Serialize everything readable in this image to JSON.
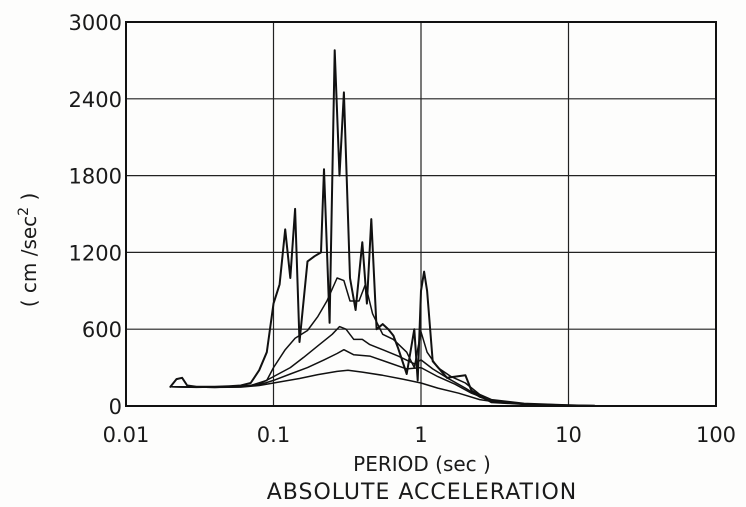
{
  "chart_data": {
    "type": "line",
    "title": "ABSOLUTE ACCELERATION",
    "xlabel": "PERIOD (sec )",
    "ylabel": "( cm /sec",
    "ylabel_sup": "2",
    "ylabel_end": " )",
    "x_scale": "log",
    "xlim": [
      0.01,
      100
    ],
    "ylim": [
      0,
      3000
    ],
    "grid": true,
    "legend": "none",
    "x_ticks": [
      {
        "value": 0.01,
        "label": "0.01"
      },
      {
        "value": 0.1,
        "label": "0.1"
      },
      {
        "value": 1,
        "label": "1"
      },
      {
        "value": 10,
        "label": "10"
      },
      {
        "value": 100,
        "label": "100"
      }
    ],
    "y_ticks": [
      {
        "value": 0,
        "label": "0"
      },
      {
        "value": 600,
        "label": "600"
      },
      {
        "value": 1200,
        "label": "1200"
      },
      {
        "value": 1800,
        "label": "1800"
      },
      {
        "value": 2400,
        "label": "2400"
      },
      {
        "value": 3000,
        "label": "3000"
      }
    ],
    "line_color": "#111111",
    "series": [
      {
        "points": [
          [
            0.02,
            150
          ],
          [
            0.022,
            210
          ],
          [
            0.024,
            220
          ],
          [
            0.026,
            160
          ],
          [
            0.03,
            150
          ],
          [
            0.04,
            150
          ],
          [
            0.05,
            155
          ],
          [
            0.06,
            160
          ],
          [
            0.07,
            180
          ],
          [
            0.08,
            280
          ],
          [
            0.09,
            420
          ],
          [
            0.1,
            800
          ],
          [
            0.11,
            950
          ],
          [
            0.12,
            1380
          ],
          [
            0.13,
            1000
          ],
          [
            0.14,
            1540
          ],
          [
            0.15,
            500
          ],
          [
            0.17,
            1130
          ],
          [
            0.19,
            1170
          ],
          [
            0.21,
            1200
          ],
          [
            0.22,
            1850
          ],
          [
            0.24,
            650
          ],
          [
            0.26,
            2780
          ],
          [
            0.28,
            1800
          ],
          [
            0.3,
            2450
          ],
          [
            0.33,
            1000
          ],
          [
            0.36,
            750
          ],
          [
            0.4,
            1280
          ],
          [
            0.43,
            800
          ],
          [
            0.46,
            1460
          ],
          [
            0.5,
            600
          ],
          [
            0.55,
            640
          ],
          [
            0.6,
            600
          ],
          [
            0.65,
            550
          ],
          [
            0.7,
            450
          ],
          [
            0.8,
            250
          ],
          [
            0.9,
            600
          ],
          [
            0.95,
            200
          ],
          [
            1.0,
            900
          ],
          [
            1.05,
            1050
          ],
          [
            1.1,
            900
          ],
          [
            1.2,
            350
          ],
          [
            1.5,
            220
          ],
          [
            2.0,
            240
          ],
          [
            2.2,
            120
          ],
          [
            3.0,
            30
          ],
          [
            5.0,
            15
          ],
          [
            10,
            5
          ],
          [
            15,
            2
          ]
        ]
      },
      {
        "points": [
          [
            0.02,
            150
          ],
          [
            0.03,
            145
          ],
          [
            0.05,
            150
          ],
          [
            0.07,
            160
          ],
          [
            0.09,
            200
          ],
          [
            0.1,
            300
          ],
          [
            0.12,
            440
          ],
          [
            0.14,
            530
          ],
          [
            0.17,
            590
          ],
          [
            0.2,
            700
          ],
          [
            0.23,
            820
          ],
          [
            0.27,
            1000
          ],
          [
            0.3,
            980
          ],
          [
            0.33,
            820
          ],
          [
            0.38,
            820
          ],
          [
            0.42,
            950
          ],
          [
            0.47,
            720
          ],
          [
            0.55,
            560
          ],
          [
            0.65,
            520
          ],
          [
            0.8,
            420
          ],
          [
            0.9,
            300
          ],
          [
            1.0,
            580
          ],
          [
            1.1,
            420
          ],
          [
            1.3,
            300
          ],
          [
            1.6,
            230
          ],
          [
            2.0,
            180
          ],
          [
            2.5,
            90
          ],
          [
            3.0,
            50
          ],
          [
            5.0,
            20
          ],
          [
            10,
            8
          ],
          [
            15,
            3
          ]
        ]
      },
      {
        "points": [
          [
            0.02,
            150
          ],
          [
            0.04,
            145
          ],
          [
            0.06,
            150
          ],
          [
            0.08,
            170
          ],
          [
            0.1,
            230
          ],
          [
            0.13,
            300
          ],
          [
            0.16,
            380
          ],
          [
            0.2,
            470
          ],
          [
            0.25,
            560
          ],
          [
            0.28,
            620
          ],
          [
            0.31,
            600
          ],
          [
            0.35,
            520
          ],
          [
            0.4,
            520
          ],
          [
            0.45,
            480
          ],
          [
            0.55,
            440
          ],
          [
            0.7,
            390
          ],
          [
            0.9,
            330
          ],
          [
            1.0,
            360
          ],
          [
            1.2,
            290
          ],
          [
            1.5,
            220
          ],
          [
            2.0,
            140
          ],
          [
            2.5,
            70
          ],
          [
            3.0,
            40
          ],
          [
            5.0,
            15
          ],
          [
            10,
            5
          ]
        ]
      },
      {
        "points": [
          [
            0.02,
            150
          ],
          [
            0.04,
            145
          ],
          [
            0.06,
            150
          ],
          [
            0.08,
            165
          ],
          [
            0.1,
            200
          ],
          [
            0.13,
            250
          ],
          [
            0.17,
            300
          ],
          [
            0.22,
            360
          ],
          [
            0.27,
            410
          ],
          [
            0.3,
            440
          ],
          [
            0.35,
            400
          ],
          [
            0.45,
            390
          ],
          [
            0.6,
            340
          ],
          [
            0.8,
            290
          ],
          [
            1.0,
            300
          ],
          [
            1.3,
            230
          ],
          [
            1.7,
            170
          ],
          [
            2.2,
            100
          ],
          [
            3.0,
            40
          ],
          [
            5.0,
            15
          ],
          [
            10,
            4
          ]
        ]
      },
      {
        "points": [
          [
            0.02,
            150
          ],
          [
            0.04,
            145
          ],
          [
            0.06,
            148
          ],
          [
            0.08,
            160
          ],
          [
            0.1,
            180
          ],
          [
            0.15,
            215
          ],
          [
            0.2,
            245
          ],
          [
            0.27,
            270
          ],
          [
            0.32,
            280
          ],
          [
            0.4,
            265
          ],
          [
            0.55,
            240
          ],
          [
            0.75,
            210
          ],
          [
            1.0,
            180
          ],
          [
            1.3,
            140
          ],
          [
            1.8,
            100
          ],
          [
            2.5,
            50
          ],
          [
            3.5,
            25
          ],
          [
            6.0,
            10
          ],
          [
            10,
            3
          ]
        ]
      }
    ]
  }
}
